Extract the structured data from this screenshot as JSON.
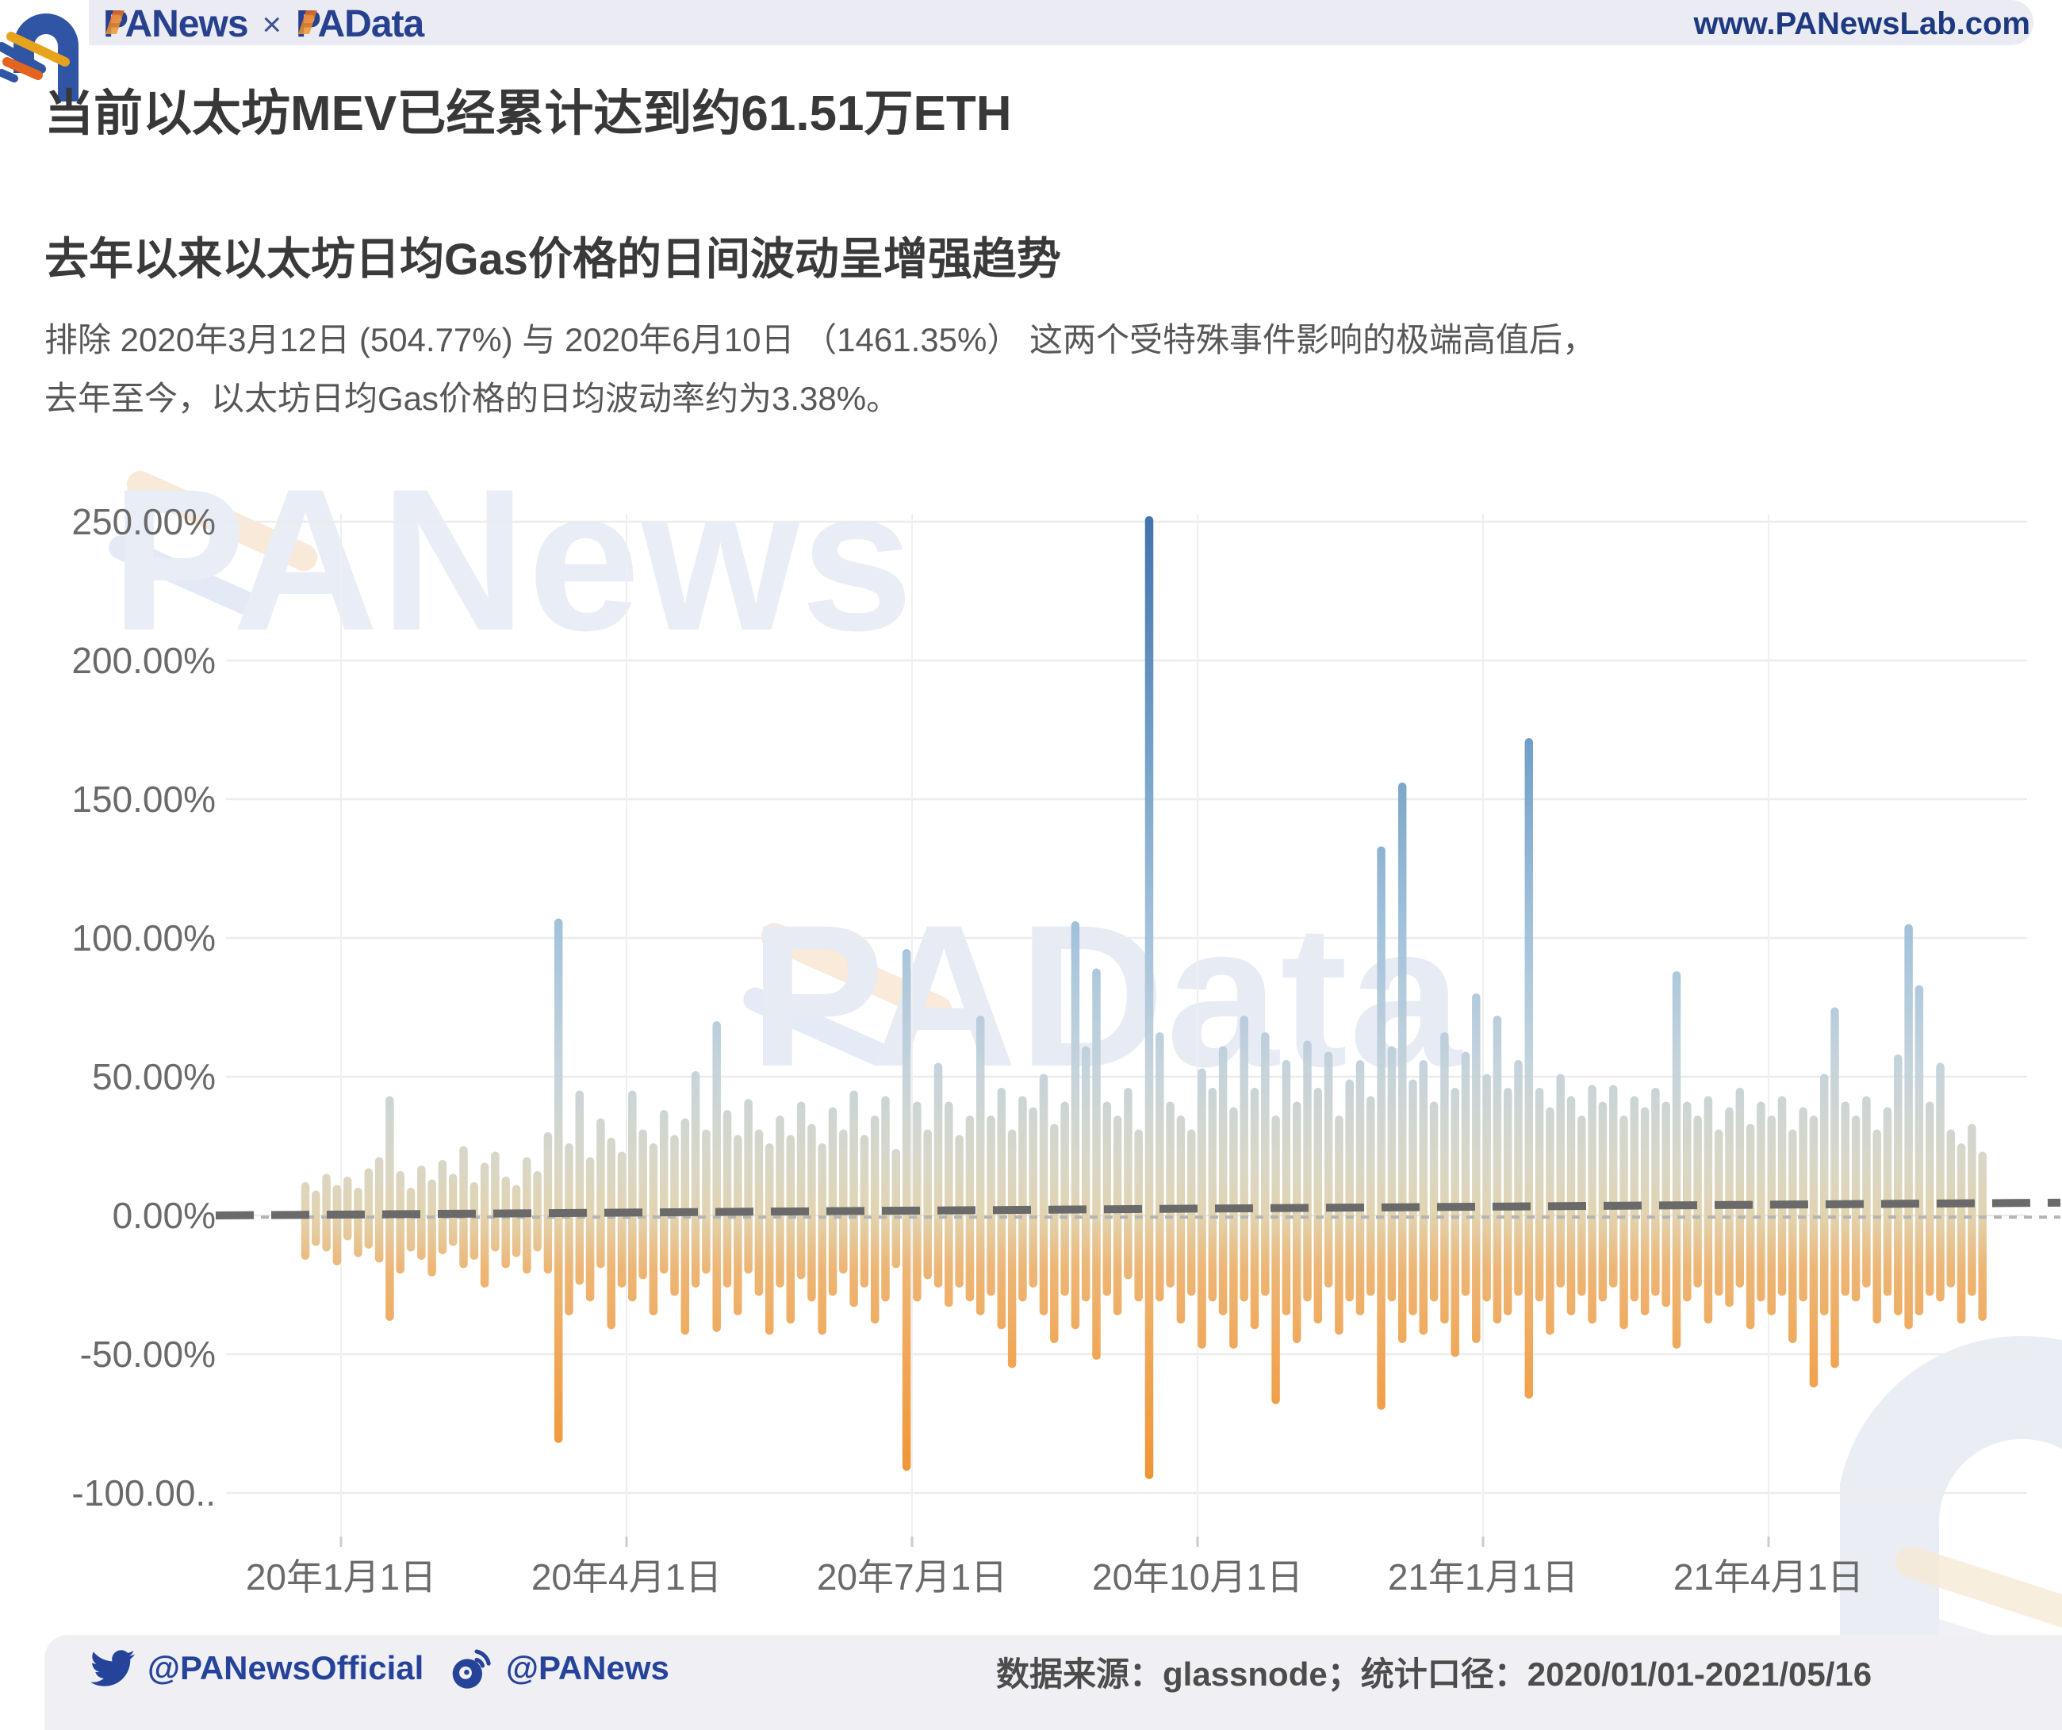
{
  "header": {
    "brand_left": "PANews",
    "brand_sep": "×",
    "brand_right": "PAData",
    "url": "www.PANewsLab.com"
  },
  "titles": {
    "main": "当前以太坊MEV已经累计达到约61.51万ETH",
    "sub": "去年以来以太坊日均Gas价格的日间波动呈增强趋势",
    "desc_line1": "排除 2020年3月12日 (504.77%) 与 2020年6月10日 （1461.35%） 这两个受特殊事件影响的极端高值后，",
    "desc_line2": "去年至今，以太坊日均Gas价格的日均波动率约为3.38%。"
  },
  "watermarks": {
    "top": "PANews",
    "middle": "PAData"
  },
  "footer": {
    "twitter_handle": "@PANewsOfficial",
    "weibo_handle": "@PANews",
    "source": "数据来源：glassnode；统计口径：2020/01/01-2021/05/16"
  },
  "chart_data": {
    "type": "bar",
    "title": "以太坊日均Gas价格日间波动率（日内区间，%）",
    "xlabel": "",
    "ylabel": "",
    "unit": "%",
    "grid": true,
    "legend_position": "none",
    "ylim": [
      -115,
      262
    ],
    "y_ticks": [
      "250.00%",
      "200.00%",
      "150.00%",
      "100.00%",
      "50.00%",
      "0.00%",
      "-50.00%",
      "-100.00.."
    ],
    "y_tick_values": [
      250,
      200,
      150,
      100,
      50,
      0,
      -50,
      -100
    ],
    "x_ticks": [
      "20年1月1日",
      "20年4月1日",
      "20年7月1日",
      "20年10月1日",
      "21年1月1日",
      "21年4月1日"
    ],
    "x_range": [
      "2020/01/01",
      "2021/05/16"
    ],
    "bars_range_pct": [
      [
        12,
        -16
      ],
      [
        9,
        -11
      ],
      [
        15,
        -13
      ],
      [
        11,
        -18
      ],
      [
        14,
        -9
      ],
      [
        10,
        -15
      ],
      [
        17,
        -12
      ],
      [
        21,
        -17
      ],
      [
        43,
        -38
      ],
      [
        16,
        -21
      ],
      [
        10,
        -13
      ],
      [
        18,
        -16
      ],
      [
        13,
        -22
      ],
      [
        20,
        -14
      ],
      [
        15,
        -11
      ],
      [
        25,
        -19
      ],
      [
        12,
        -16
      ],
      [
        19,
        -26
      ],
      [
        23,
        -13
      ],
      [
        14,
        -19
      ],
      [
        11,
        -15
      ],
      [
        21,
        -21
      ],
      [
        16,
        -13
      ],
      [
        30,
        -21
      ],
      [
        107,
        -82
      ],
      [
        26,
        -36
      ],
      [
        45,
        -25
      ],
      [
        21,
        -31
      ],
      [
        35,
        -19
      ],
      [
        28,
        -41
      ],
      [
        23,
        -26
      ],
      [
        45,
        -31
      ],
      [
        31,
        -23
      ],
      [
        26,
        -36
      ],
      [
        38,
        -21
      ],
      [
        29,
        -29
      ],
      [
        35,
        -43
      ],
      [
        52,
        -26
      ],
      [
        31,
        -21
      ],
      [
        70,
        -42
      ],
      [
        38,
        -26
      ],
      [
        29,
        -36
      ],
      [
        42,
        -21
      ],
      [
        31,
        -29
      ],
      [
        26,
        -43
      ],
      [
        36,
        -26
      ],
      [
        29,
        -39
      ],
      [
        41,
        -23
      ],
      [
        33,
        -31
      ],
      [
        26,
        -43
      ],
      [
        39,
        -29
      ],
      [
        31,
        -21
      ],
      [
        45,
        -33
      ],
      [
        29,
        -26
      ],
      [
        36,
        -39
      ],
      [
        43,
        -31
      ],
      [
        24,
        -19
      ],
      [
        96,
        -92
      ],
      [
        41,
        -31
      ],
      [
        31,
        -23
      ],
      [
        55,
        -26
      ],
      [
        41,
        -33
      ],
      [
        29,
        -26
      ],
      [
        36,
        -31
      ],
      [
        72,
        -36
      ],
      [
        36,
        -29
      ],
      [
        46,
        -41
      ],
      [
        31,
        -55
      ],
      [
        43,
        -31
      ],
      [
        39,
        -26
      ],
      [
        51,
        -36
      ],
      [
        33,
        -46
      ],
      [
        41,
        -29
      ],
      [
        106,
        -41
      ],
      [
        61,
        -31
      ],
      [
        89,
        -52
      ],
      [
        41,
        -29
      ],
      [
        36,
        -36
      ],
      [
        46,
        -23
      ],
      [
        31,
        -31
      ],
      [
        252,
        -95
      ],
      [
        66,
        -31
      ],
      [
        41,
        -26
      ],
      [
        36,
        -39
      ],
      [
        31,
        -29
      ],
      [
        53,
        -48
      ],
      [
        46,
        -31
      ],
      [
        61,
        -36
      ],
      [
        39,
        -48
      ],
      [
        72,
        -31
      ],
      [
        46,
        -41
      ],
      [
        66,
        -29
      ],
      [
        36,
        -68
      ],
      [
        56,
        -36
      ],
      [
        41,
        -46
      ],
      [
        63,
        -31
      ],
      [
        46,
        -39
      ],
      [
        59,
        -26
      ],
      [
        36,
        -43
      ],
      [
        49,
        -31
      ],
      [
        56,
        -36
      ],
      [
        43,
        -29
      ],
      [
        133,
        -70
      ],
      [
        61,
        -31
      ],
      [
        156,
        -46
      ],
      [
        49,
        -36
      ],
      [
        56,
        -43
      ],
      [
        41,
        -31
      ],
      [
        66,
        -39
      ],
      [
        46,
        -51
      ],
      [
        59,
        -29
      ],
      [
        80,
        -46
      ],
      [
        51,
        -31
      ],
      [
        72,
        -39
      ],
      [
        46,
        -36
      ],
      [
        56,
        -29
      ],
      [
        172,
        -66
      ],
      [
        46,
        -31
      ],
      [
        39,
        -43
      ],
      [
        51,
        -26
      ],
      [
        43,
        -36
      ],
      [
        36,
        -29
      ],
      [
        47,
        -39
      ],
      [
        41,
        -31
      ],
      [
        47,
        -26
      ],
      [
        36,
        -41
      ],
      [
        43,
        -31
      ],
      [
        39,
        -36
      ],
      [
        46,
        -29
      ],
      [
        41,
        -33
      ],
      [
        88,
        -48
      ],
      [
        41,
        -31
      ],
      [
        36,
        -26
      ],
      [
        43,
        -39
      ],
      [
        31,
        -29
      ],
      [
        39,
        -33
      ],
      [
        46,
        -26
      ],
      [
        33,
        -41
      ],
      [
        41,
        -31
      ],
      [
        36,
        -36
      ],
      [
        43,
        -29
      ],
      [
        31,
        -46
      ],
      [
        39,
        -31
      ],
      [
        36,
        -62
      ],
      [
        51,
        -36
      ],
      [
        75,
        -55
      ],
      [
        41,
        -29
      ],
      [
        36,
        -31
      ],
      [
        43,
        -26
      ],
      [
        31,
        -39
      ],
      [
        39,
        -29
      ],
      [
        58,
        -36
      ],
      [
        105,
        -41
      ],
      [
        83,
        -36
      ],
      [
        41,
        -29
      ],
      [
        55,
        -31
      ],
      [
        31,
        -26
      ],
      [
        26,
        -39
      ],
      [
        33,
        -29
      ],
      [
        23,
        -38
      ]
    ],
    "trend_dashed": {
      "start_pct": 0.0,
      "end_pct": 4.6
    },
    "baseline_dotted": {
      "value_pct": -0.6
    },
    "colors": {
      "bar_top_blue": "#3b6ba9",
      "bar_mid_pale": "#d6d5c6",
      "bar_bottom_orange": "#ee8d23",
      "trend_line": "#6a6a6a",
      "dotted_line": "#b5b5b5",
      "gridline": "#ececec",
      "tick_text": "#6a6a6a",
      "brand_navy": "#27418f",
      "accent_orange": "#e8a31d"
    }
  }
}
